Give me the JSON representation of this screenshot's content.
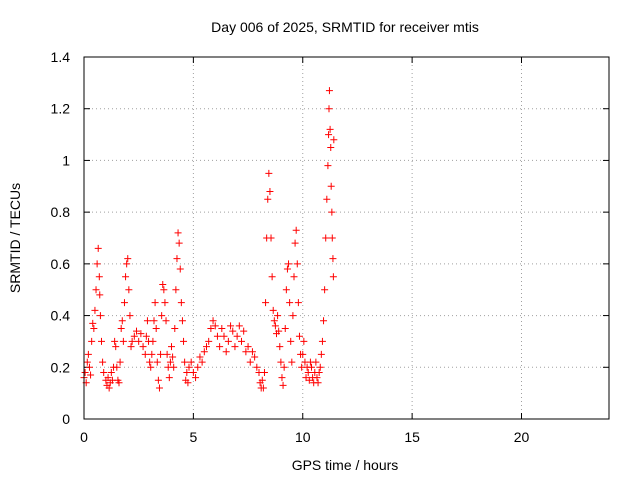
{
  "chart_data": {
    "type": "scatter",
    "title": "Day 006 of 2025, SRMTID for receiver mtis",
    "xlabel": "GPS time / hours",
    "ylabel": "SRMTID / TECUs",
    "xlim": [
      0,
      24
    ],
    "ylim": [
      0,
      1.4
    ],
    "xticks": [
      0,
      5,
      10,
      15,
      20
    ],
    "xtick_labels": [
      "0",
      "5",
      "10",
      "15",
      "20"
    ],
    "yticks": [
      0,
      0.2,
      0.4,
      0.6,
      0.8,
      1.0,
      1.2,
      1.4
    ],
    "ytick_labels": [
      "0",
      "0.2",
      "0.4",
      "0.6",
      "0.8",
      "1",
      "1.2",
      "1.4"
    ],
    "grid": true,
    "marker": "+",
    "series_color": "#ff0000",
    "series": [
      {
        "name": "SRMTID",
        "points": [
          [
            0.0,
            0.16
          ],
          [
            0.05,
            0.18
          ],
          [
            0.1,
            0.14
          ],
          [
            0.15,
            0.22
          ],
          [
            0.2,
            0.25
          ],
          [
            0.25,
            0.2
          ],
          [
            0.3,
            0.17
          ],
          [
            0.35,
            0.3
          ],
          [
            0.4,
            0.37
          ],
          [
            0.45,
            0.35
          ],
          [
            0.5,
            0.42
          ],
          [
            0.55,
            0.5
          ],
          [
            0.6,
            0.6
          ],
          [
            0.65,
            0.66
          ],
          [
            0.7,
            0.55
          ],
          [
            0.72,
            0.48
          ],
          [
            0.75,
            0.4
          ],
          [
            0.8,
            0.3
          ],
          [
            0.85,
            0.22
          ],
          [
            0.9,
            0.18
          ],
          [
            1.0,
            0.15
          ],
          [
            1.05,
            0.13
          ],
          [
            1.1,
            0.16
          ],
          [
            1.15,
            0.12
          ],
          [
            1.2,
            0.14
          ],
          [
            1.25,
            0.18
          ],
          [
            1.3,
            0.15
          ],
          [
            1.35,
            0.2
          ],
          [
            1.4,
            0.3
          ],
          [
            1.45,
            0.28
          ],
          [
            1.5,
            0.2
          ],
          [
            1.55,
            0.15
          ],
          [
            1.6,
            0.14
          ],
          [
            1.65,
            0.22
          ],
          [
            1.7,
            0.35
          ],
          [
            1.75,
            0.38
          ],
          [
            1.8,
            0.3
          ],
          [
            1.85,
            0.45
          ],
          [
            1.9,
            0.55
          ],
          [
            1.95,
            0.6
          ],
          [
            2.0,
            0.62
          ],
          [
            2.05,
            0.5
          ],
          [
            2.1,
            0.4
          ],
          [
            2.15,
            0.28
          ],
          [
            2.2,
            0.3
          ],
          [
            2.3,
            0.32
          ],
          [
            2.4,
            0.34
          ],
          [
            2.5,
            0.3
          ],
          [
            2.6,
            0.33
          ],
          [
            2.7,
            0.28
          ],
          [
            2.8,
            0.25
          ],
          [
            2.85,
            0.32
          ],
          [
            2.9,
            0.38
          ],
          [
            2.95,
            0.3
          ],
          [
            3.0,
            0.22
          ],
          [
            3.05,
            0.2
          ],
          [
            3.1,
            0.25
          ],
          [
            3.15,
            0.3
          ],
          [
            3.2,
            0.38
          ],
          [
            3.25,
            0.45
          ],
          [
            3.3,
            0.35
          ],
          [
            3.35,
            0.22
          ],
          [
            3.4,
            0.15
          ],
          [
            3.45,
            0.12
          ],
          [
            3.5,
            0.25
          ],
          [
            3.55,
            0.4
          ],
          [
            3.6,
            0.52
          ],
          [
            3.65,
            0.5
          ],
          [
            3.7,
            0.45
          ],
          [
            3.75,
            0.38
          ],
          [
            3.8,
            0.25
          ],
          [
            3.85,
            0.2
          ],
          [
            3.9,
            0.16
          ],
          [
            3.95,
            0.22
          ],
          [
            4.0,
            0.28
          ],
          [
            4.05,
            0.24
          ],
          [
            4.1,
            0.2
          ],
          [
            4.15,
            0.35
          ],
          [
            4.2,
            0.5
          ],
          [
            4.25,
            0.62
          ],
          [
            4.3,
            0.72
          ],
          [
            4.35,
            0.68
          ],
          [
            4.4,
            0.58
          ],
          [
            4.45,
            0.45
          ],
          [
            4.5,
            0.38
          ],
          [
            4.55,
            0.3
          ],
          [
            4.6,
            0.22
          ],
          [
            4.65,
            0.15
          ],
          [
            4.7,
            0.18
          ],
          [
            4.75,
            0.14
          ],
          [
            4.8,
            0.2
          ],
          [
            4.9,
            0.22
          ],
          [
            5.0,
            0.18
          ],
          [
            5.1,
            0.16
          ],
          [
            5.2,
            0.2
          ],
          [
            5.3,
            0.24
          ],
          [
            5.4,
            0.22
          ],
          [
            5.5,
            0.26
          ],
          [
            5.6,
            0.28
          ],
          [
            5.7,
            0.3
          ],
          [
            5.8,
            0.35
          ],
          [
            5.9,
            0.38
          ],
          [
            6.0,
            0.36
          ],
          [
            6.1,
            0.32
          ],
          [
            6.2,
            0.28
          ],
          [
            6.3,
            0.35
          ],
          [
            6.4,
            0.32
          ],
          [
            6.5,
            0.26
          ],
          [
            6.6,
            0.3
          ],
          [
            6.7,
            0.36
          ],
          [
            6.8,
            0.34
          ],
          [
            6.9,
            0.28
          ],
          [
            7.0,
            0.32
          ],
          [
            7.1,
            0.36
          ],
          [
            7.2,
            0.3
          ],
          [
            7.3,
            0.34
          ],
          [
            7.4,
            0.26
          ],
          [
            7.5,
            0.28
          ],
          [
            7.6,
            0.22
          ],
          [
            7.7,
            0.26
          ],
          [
            7.8,
            0.24
          ],
          [
            7.9,
            0.2
          ],
          [
            8.0,
            0.18
          ],
          [
            8.05,
            0.14
          ],
          [
            8.1,
            0.12
          ],
          [
            8.15,
            0.15
          ],
          [
            8.2,
            0.12
          ],
          [
            8.25,
            0.18
          ],
          [
            8.3,
            0.45
          ],
          [
            8.35,
            0.7
          ],
          [
            8.4,
            0.85
          ],
          [
            8.45,
            0.95
          ],
          [
            8.5,
            0.88
          ],
          [
            8.55,
            0.7
          ],
          [
            8.6,
            0.55
          ],
          [
            8.65,
            0.42
          ],
          [
            8.7,
            0.38
          ],
          [
            8.75,
            0.36
          ],
          [
            8.8,
            0.33
          ],
          [
            8.85,
            0.4
          ],
          [
            8.9,
            0.34
          ],
          [
            8.95,
            0.28
          ],
          [
            9.0,
            0.22
          ],
          [
            9.05,
            0.16
          ],
          [
            9.1,
            0.13
          ],
          [
            9.15,
            0.2
          ],
          [
            9.2,
            0.35
          ],
          [
            9.25,
            0.5
          ],
          [
            9.3,
            0.58
          ],
          [
            9.35,
            0.6
          ],
          [
            9.4,
            0.45
          ],
          [
            9.45,
            0.3
          ],
          [
            9.5,
            0.22
          ],
          [
            9.55,
            0.4
          ],
          [
            9.6,
            0.55
          ],
          [
            9.65,
            0.68
          ],
          [
            9.7,
            0.73
          ],
          [
            9.75,
            0.6
          ],
          [
            9.8,
            0.45
          ],
          [
            9.85,
            0.32
          ],
          [
            9.9,
            0.25
          ],
          [
            9.95,
            0.2
          ],
          [
            10.0,
            0.25
          ],
          [
            10.05,
            0.3
          ],
          [
            10.1,
            0.22
          ],
          [
            10.15,
            0.16
          ],
          [
            10.2,
            0.2
          ],
          [
            10.25,
            0.18
          ],
          [
            10.3,
            0.15
          ],
          [
            10.35,
            0.22
          ],
          [
            10.4,
            0.2
          ],
          [
            10.45,
            0.16
          ],
          [
            10.5,
            0.14
          ],
          [
            10.55,
            0.18
          ],
          [
            10.6,
            0.22
          ],
          [
            10.65,
            0.16
          ],
          [
            10.7,
            0.14
          ],
          [
            10.75,
            0.18
          ],
          [
            10.8,
            0.2
          ],
          [
            10.85,
            0.25
          ],
          [
            10.9,
            0.3
          ],
          [
            10.95,
            0.38
          ],
          [
            11.0,
            0.5
          ],
          [
            11.05,
            0.7
          ],
          [
            11.1,
            0.85
          ],
          [
            11.15,
            0.98
          ],
          [
            11.18,
            1.1
          ],
          [
            11.2,
            1.2
          ],
          [
            11.22,
            1.27
          ],
          [
            11.25,
            1.12
          ],
          [
            11.28,
            1.05
          ],
          [
            11.3,
            0.9
          ],
          [
            11.33,
            0.8
          ],
          [
            11.35,
            0.7
          ],
          [
            11.38,
            0.62
          ],
          [
            11.4,
            0.55
          ],
          [
            11.42,
            1.08
          ]
        ]
      }
    ]
  }
}
